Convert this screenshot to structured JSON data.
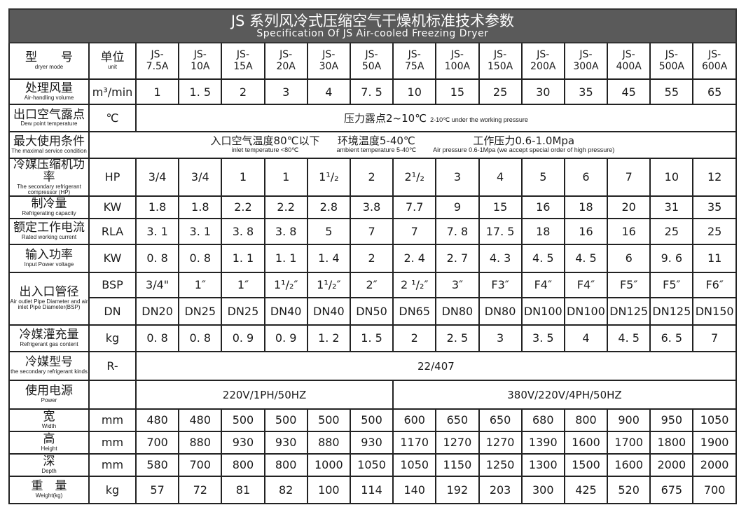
{
  "title": {
    "cn": "JS 系列风冷式压缩空气干燥机标准技术参数",
    "en": "Specification Of JS  Air-cooled Freezing Dryer"
  },
  "header": {
    "label_cn": "型　　号",
    "label_en": "dryer mode",
    "unit_cn": "单位",
    "unit_en": "unit",
    "models": [
      [
        "JS-",
        "7.5A"
      ],
      [
        "JS-",
        "10A"
      ],
      [
        "JS-",
        "15A"
      ],
      [
        "JS-",
        "20A"
      ],
      [
        "JS-",
        "30A"
      ],
      [
        "JS-",
        "50A"
      ],
      [
        "JS-",
        "75A"
      ],
      [
        "JS-",
        "100A"
      ],
      [
        "JS-",
        "150A"
      ],
      [
        "JS-",
        "200A"
      ],
      [
        "JS-",
        "300A"
      ],
      [
        "JS-",
        "400A"
      ],
      [
        "JS-",
        "500A"
      ],
      [
        "JS-",
        "600A"
      ]
    ]
  },
  "rows": [
    {
      "cn": "处理风量",
      "en": "Air-handling volume",
      "unit": "m³/min",
      "values": [
        "1",
        "1. 5",
        "2",
        "3",
        "4",
        "7. 5",
        "10",
        "15",
        "25",
        "30",
        "35",
        "45",
        "55",
        "65"
      ]
    },
    {
      "cn": "出口空气露点",
      "en": "Dew point temperature",
      "unit": "℃",
      "span": [
        {
          "main": "压力露点2~10℃",
          "sub": "2-10℃ under the working pressure",
          "cols": 14
        }
      ]
    },
    {
      "cn": "最大使用条件",
      "en": "The maximal service condition",
      "unit": "",
      "conditions": [
        {
          "main": "入口空气温度80℃以下",
          "sub": "inlet temperature <80℃"
        },
        {
          "main": "环境温度5-40℃",
          "sub": "ambient temperature 5-40℃"
        },
        {
          "main": "工作压力0.6-1.0Mpa",
          "sub": "Air pressure 0.6-1Mpa (we accept special order of high pressure)"
        }
      ]
    },
    {
      "cn": "冷媒压缩机功率",
      "en": "The secondary refrigerant compressor (HP)",
      "unit": "HP",
      "values": [
        "3/4",
        "3/4",
        "1",
        "1",
        "1¹/₂",
        "2",
        "2¹/₂",
        "3",
        "4",
        "5",
        "6",
        "7",
        "10",
        "12"
      ]
    },
    {
      "cn": "制冷量",
      "en": "Refrigerating capacity",
      "unit": "KW",
      "values": [
        "1.8",
        "1.8",
        "2.2",
        "2.2",
        "2.8",
        "3.8",
        "7.7",
        "9",
        "15",
        "16",
        "18",
        "20",
        "31",
        "35"
      ]
    },
    {
      "cn": "额定工作电流",
      "en": "Rated working current",
      "unit": "RLA",
      "values": [
        "3. 1",
        "3. 1",
        "3. 8",
        "3. 8",
        "5",
        "7",
        "7",
        "7. 8",
        "17. 5",
        "18",
        "16",
        "16",
        "25",
        "25"
      ]
    },
    {
      "cn": "输入功率",
      "en": "Input Power voltage",
      "unit": "KW",
      "values": [
        "0. 8",
        "0. 8",
        "1. 1",
        "1. 1",
        "1. 4",
        "2",
        "2. 4",
        "2. 7",
        "4. 3",
        "4. 5",
        "4. 5",
        "6",
        "9. 6",
        "11"
      ]
    },
    {
      "cn": "出入口管径",
      "en": "Air outlet Pipe Diameter and air inlet Pipe Diameter(BSP)",
      "unit": "BSP",
      "rowspan": 2,
      "values": [
        "3/4\"",
        "1″",
        "1″",
        "1¹/₂″",
        "1¹/₂″",
        "2″",
        "2 ¹/₂″",
        "3″",
        "F3″",
        "F4″",
        "F4″",
        "F5″",
        "F5″",
        "F6″"
      ]
    },
    {
      "unit": "DN",
      "values": [
        "DN20",
        "DN25",
        "DN25",
        "DN40",
        "DN40",
        "DN50",
        "DN65",
        "DN80",
        "DN80",
        "DN100",
        "DN100",
        "DN125",
        "DN125",
        "DN150"
      ]
    },
    {
      "cn": "冷媒灌充量",
      "en": "Refrigerant gas content",
      "unit": "kg",
      "values": [
        "0. 8",
        "0. 8",
        "0. 9",
        "0. 9",
        "1. 2",
        "1. 5",
        "2",
        "2. 5",
        "3",
        "3. 5",
        "4",
        "4. 5",
        "6. 5",
        "7"
      ]
    },
    {
      "cn": "冷媒型号",
      "en": "the secondary refrigerant kinds",
      "unit": "R-",
      "span": [
        {
          "main": "22/407",
          "sub": "",
          "cols": 14
        }
      ]
    },
    {
      "cn": "使用电源",
      "en": "Power",
      "unit": "",
      "span": [
        {
          "main": "220V/1PH/50HZ",
          "sub": "",
          "cols": 6
        },
        {
          "main": "380V/220V/4PH/50HZ",
          "sub": "",
          "cols": 8
        }
      ]
    },
    {
      "cn": "宽",
      "en": "Width",
      "unit": "mm",
      "values": [
        "480",
        "480",
        "500",
        "500",
        "500",
        "500",
        "600",
        "650",
        "650",
        "680",
        "800",
        "900",
        "950",
        "1050"
      ]
    },
    {
      "cn": "高",
      "en": "Height",
      "unit": "mm",
      "values": [
        "700",
        "880",
        "930",
        "930",
        "880",
        "930",
        "1170",
        "1270",
        "1270",
        "1390",
        "1600",
        "1700",
        "1800",
        "1900"
      ]
    },
    {
      "cn": "深",
      "en": "Depth",
      "unit": "mm",
      "values": [
        "580",
        "700",
        "800",
        "800",
        "1000",
        "1050",
        "1050",
        "1150",
        "1250",
        "1300",
        "1500",
        "1600",
        "2000",
        "2000"
      ]
    },
    {
      "cn": "重　量",
      "en": "Weight(kg)",
      "unit": "kg",
      "values": [
        "57",
        "72",
        "81",
        "82",
        "100",
        "114",
        "140",
        "192",
        "203",
        "300",
        "425",
        "520",
        "675",
        "700"
      ]
    }
  ]
}
